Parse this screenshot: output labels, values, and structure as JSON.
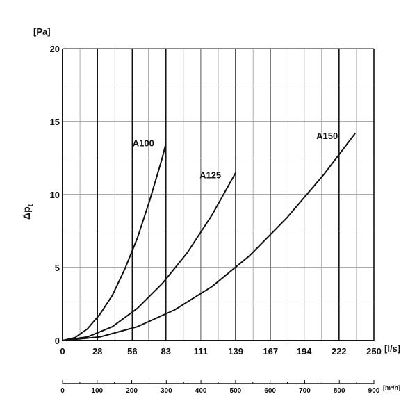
{
  "chart_data": {
    "type": "line",
    "y_unit": "[Pa]",
    "ylabel": "Δp",
    "ylabel_sub": "t",
    "x_unit": "[l/s]",
    "x2_unit": "[m³/h]",
    "xlim": [
      0,
      250
    ],
    "ylim": [
      0,
      20
    ],
    "x_ticks": [
      0,
      28,
      56,
      83,
      111,
      139,
      167,
      194,
      222,
      250
    ],
    "x_ticks_major": [
      0,
      28,
      56,
      83,
      139,
      222,
      250
    ],
    "x_ticks_minor": [
      14,
      42,
      69,
      97,
      125,
      153,
      181,
      208,
      236
    ],
    "y_ticks": [
      0,
      5,
      10,
      15,
      20
    ],
    "x2_ticks": [
      0,
      100,
      200,
      300,
      400,
      500,
      600,
      700,
      800,
      900
    ],
    "x2_lim": [
      0,
      900
    ],
    "grid": true,
    "series": [
      {
        "name": "A100",
        "x": [
          0,
          10,
          20,
          30,
          40,
          50,
          60,
          70,
          80,
          83
        ],
        "y": [
          0,
          0.2,
          0.8,
          1.8,
          3.1,
          4.9,
          7.0,
          9.6,
          12.5,
          13.5
        ]
      },
      {
        "name": "A125",
        "x": [
          0,
          20,
          40,
          60,
          80,
          100,
          120,
          139
        ],
        "y": [
          0,
          0.25,
          0.95,
          2.2,
          3.9,
          6.0,
          8.6,
          11.5
        ]
      },
      {
        "name": "A150",
        "x": [
          0,
          30,
          60,
          90,
          120,
          150,
          180,
          210,
          235
        ],
        "y": [
          0,
          0.25,
          0.95,
          2.1,
          3.7,
          5.8,
          8.4,
          11.4,
          14.2
        ]
      }
    ]
  }
}
